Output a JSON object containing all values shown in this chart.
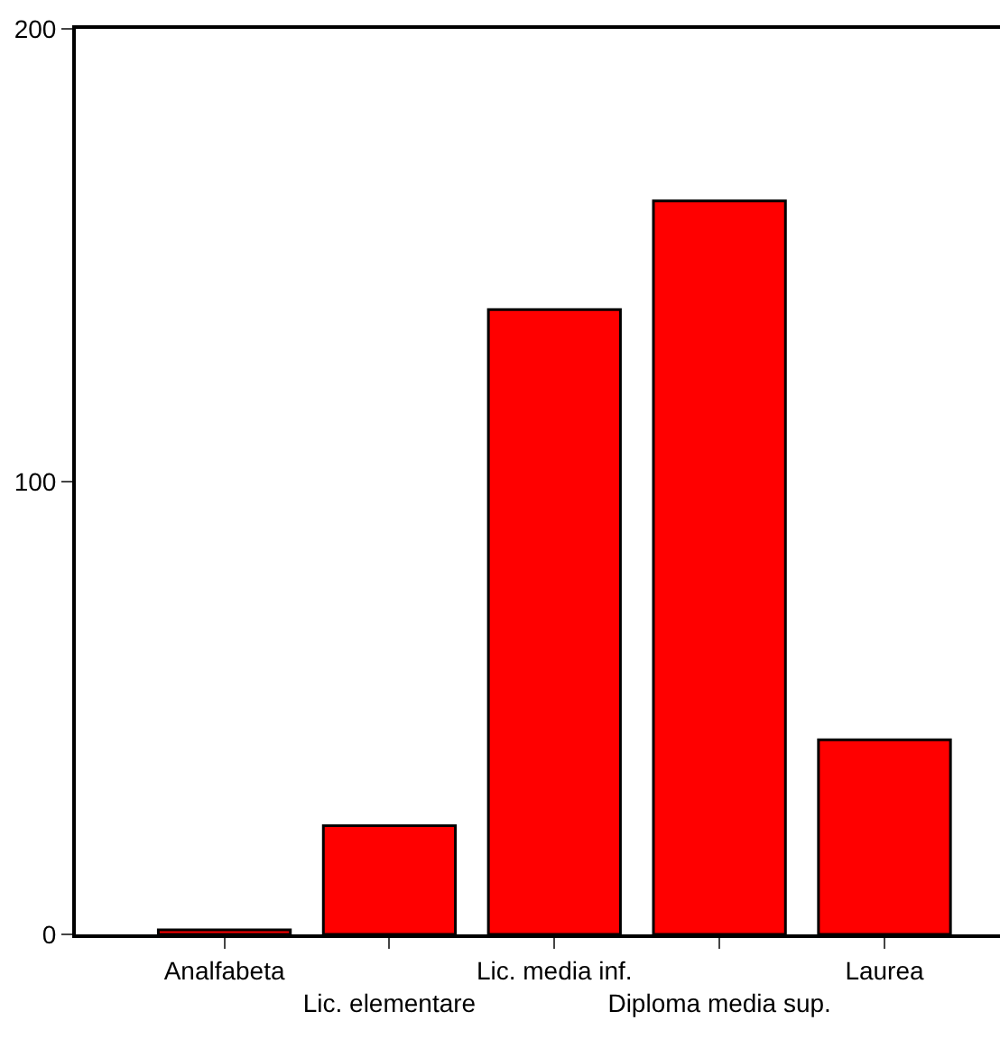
{
  "chart_data": {
    "type": "bar",
    "categories": [
      "Analfabeta",
      "Lic. elementare",
      "Lic. media inf.",
      "Diploma media sup.",
      "Laurea"
    ],
    "values": [
      1,
      24,
      138,
      162,
      43
    ],
    "color": "#ff0000",
    "ylim": [
      0,
      200
    ],
    "yticks": [
      0,
      100,
      200
    ]
  }
}
